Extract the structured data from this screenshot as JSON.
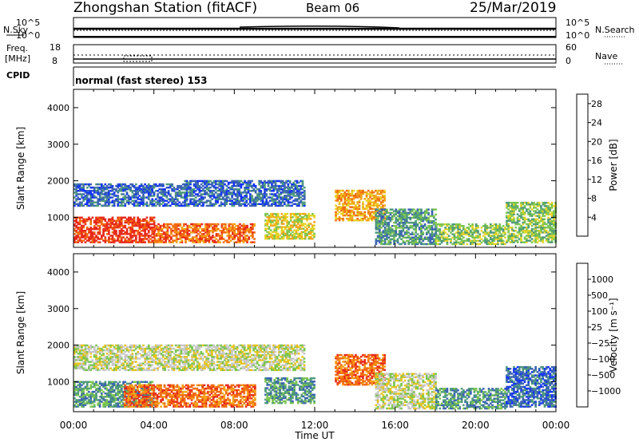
{
  "header": {
    "station": "Zhongshan Station (fitACF)",
    "beam": "Beam 06",
    "date": "25/Mar/2019"
  },
  "top_panels": {
    "nsky_label": "N.Sky",
    "nsearch_label": "N.Search",
    "noise_ticks_left": [
      "10^5",
      "10^0"
    ],
    "noise_ticks_right": [
      "10^5",
      "10^0"
    ],
    "freq_label_line1": "Freq.",
    "freq_label_line2": "[MHz]",
    "freq_ticks": [
      "18",
      "8"
    ],
    "nave_ticks": [
      "60",
      "0"
    ],
    "nave_label": "Nave",
    "cpid_label": "CPID",
    "cpid_text": "normal (fast stereo) 153"
  },
  "chart_data": [
    {
      "type": "heatmap",
      "name": "power",
      "ylabel": "Slant Range [km]",
      "xlabel": "Time UT",
      "x_ticks": [
        "00:00",
        "04:00",
        "08:00",
        "12:00",
        "16:00",
        "20:00",
        "00:00"
      ],
      "xlim_hours": [
        0,
        24
      ],
      "ylim_km": [
        180,
        4500
      ],
      "y_ticks": [
        1000,
        2000,
        3000,
        4000
      ],
      "colorbar": {
        "label": "Power [dB]",
        "range": [
          0,
          30
        ],
        "ticks": [
          "4",
          "8",
          "12",
          "16",
          "20",
          "24",
          "28"
        ],
        "colors": [
          "#1432ff",
          "#3c64b4",
          "#4f9a7c",
          "#7cc550",
          "#e6d426",
          "#f5a218",
          "#f26b10",
          "#e8291c"
        ]
      },
      "echo_regions": [
        {
          "t0": 0.0,
          "t1": 4.0,
          "r0": 300,
          "r1": 1000,
          "level": 7
        },
        {
          "t0": 4.0,
          "t1": 9.0,
          "r0": 300,
          "r1": 800,
          "level": 6
        },
        {
          "t0": 0.0,
          "t1": 5.5,
          "r0": 1300,
          "r1": 1900,
          "level": 1
        },
        {
          "t0": 5.5,
          "t1": 11.5,
          "r0": 1300,
          "r1": 2000,
          "level": 1
        },
        {
          "t0": 9.5,
          "t1": 12.0,
          "r0": 400,
          "r1": 1100,
          "level": 4
        },
        {
          "t0": 13.0,
          "t1": 15.5,
          "r0": 900,
          "r1": 1750,
          "level": 5
        },
        {
          "t0": 15.0,
          "t1": 18.0,
          "r0": 250,
          "r1": 1200,
          "level": 2
        },
        {
          "t0": 18.0,
          "t1": 21.5,
          "r0": 250,
          "r1": 800,
          "level": 3
        },
        {
          "t0": 21.5,
          "t1": 24.0,
          "r0": 300,
          "r1": 1400,
          "level": 3
        }
      ]
    },
    {
      "type": "heatmap",
      "name": "velocity",
      "ylabel": "Slant Range [km]",
      "xlabel": "Time UT",
      "x_ticks": [
        "00:00",
        "04:00",
        "08:00",
        "12:00",
        "16:00",
        "20:00",
        "00:00"
      ],
      "xlim_hours": [
        0,
        24
      ],
      "ylim_km": [
        180,
        4500
      ],
      "y_ticks": [
        1000,
        2000,
        3000,
        4000
      ],
      "colorbar": {
        "label": "Velocity [m s⁻¹]",
        "ticks": [
          "1000",
          "500",
          "100",
          "25",
          "−25",
          "−100",
          "−500",
          "−1000"
        ],
        "colors": [
          "#1432ff",
          "#3c64b4",
          "#4f9a7c",
          "#7cc550",
          "#c8c8c8",
          "#e6c41a",
          "#f5a218",
          "#f26b10",
          "#e8291c"
        ]
      },
      "echo_regions": [
        {
          "t0": 0.0,
          "t1": 4.0,
          "r0": 300,
          "r1": 1000,
          "level": 2
        },
        {
          "t0": 2.5,
          "t1": 9.0,
          "r0": 300,
          "r1": 900,
          "level": 7
        },
        {
          "t0": 0.0,
          "t1": 11.5,
          "r0": 1300,
          "r1": 2000,
          "level": 4
        },
        {
          "t0": 9.5,
          "t1": 12.0,
          "r0": 400,
          "r1": 1100,
          "level": 2
        },
        {
          "t0": 13.0,
          "t1": 15.5,
          "r0": 900,
          "r1": 1750,
          "level": 7
        },
        {
          "t0": 15.0,
          "t1": 18.0,
          "r0": 250,
          "r1": 1200,
          "level": 4
        },
        {
          "t0": 18.0,
          "t1": 21.5,
          "r0": 250,
          "r1": 800,
          "level": 2
        },
        {
          "t0": 21.5,
          "t1": 24.0,
          "r0": 300,
          "r1": 1400,
          "level": 1
        }
      ]
    }
  ]
}
